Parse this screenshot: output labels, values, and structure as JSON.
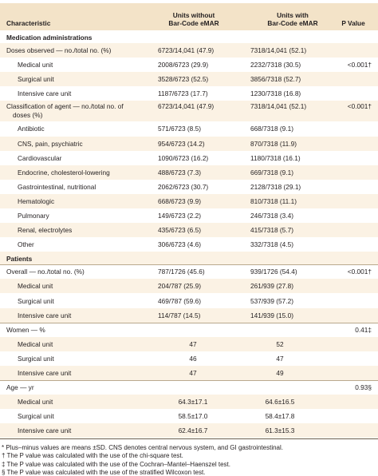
{
  "header": {
    "characteristic": "Characteristic",
    "without_line1": "Units without",
    "without_line2": "Bar-Code eMAR",
    "with_line1": "Units with",
    "with_line2": "Bar-Code eMAR",
    "p_value": "P Value"
  },
  "rows": [
    {
      "label": "Medication administrations",
      "without": "",
      "with": "",
      "p": "",
      "kind": "section"
    },
    {
      "label": "Doses observed — no./total no. (%)",
      "without": "6723/14,041 (47.9)",
      "with": "7318/14,041 (52.1)",
      "p": "",
      "kind": "group"
    },
    {
      "label": "Medical unit",
      "without": "2008/6723 (29.9)",
      "with": "2232/7318 (30.5)",
      "p": "<0.001†",
      "kind": "sub"
    },
    {
      "label": "Surgical unit",
      "without": "3528/6723 (52.5)",
      "with": "3856/7318 (52.7)",
      "p": "",
      "kind": "sub"
    },
    {
      "label": "Intensive care unit",
      "without": "1187/6723 (17.7)",
      "with": "1230/7318 (16.8)",
      "p": "",
      "kind": "sub"
    },
    {
      "label": "Classification of agent — no./total no. of",
      "label2": "doses (%)",
      "without": "6723/14,041 (47.9)",
      "with": "7318/14,041 (52.1)",
      "p": "<0.001†",
      "kind": "group2"
    },
    {
      "label": "Antibiotic",
      "without": "571/6723 (8.5)",
      "with": "668/7318 (9.1)",
      "p": "",
      "kind": "sub"
    },
    {
      "label": "CNS, pain, psychiatric",
      "without": "954/6723 (14.2)",
      "with": "870/7318 (11.9)",
      "p": "",
      "kind": "sub"
    },
    {
      "label": "Cardiovascular",
      "without": "1090/6723 (16.2)",
      "with": "1180/7318 (16.1)",
      "p": "",
      "kind": "sub"
    },
    {
      "label": "Endocrine, cholesterol-lowering",
      "without": "488/6723 (7.3)",
      "with": "669/7318 (9.1)",
      "p": "",
      "kind": "sub"
    },
    {
      "label": "Gastrointestinal, nutritional",
      "without": "2062/6723 (30.7)",
      "with": "2128/7318 (29.1)",
      "p": "",
      "kind": "sub"
    },
    {
      "label": "Hematologic",
      "without": "668/6723 (9.9)",
      "with": "810/7318 (11.1)",
      "p": "",
      "kind": "sub"
    },
    {
      "label": "Pulmonary",
      "without": "149/6723 (2.2)",
      "with": "246/7318 (3.4)",
      "p": "",
      "kind": "sub"
    },
    {
      "label": "Renal, electrolytes",
      "without": "435/6723 (6.5)",
      "with": "415/7318 (5.7)",
      "p": "",
      "kind": "sub"
    },
    {
      "label": "Other",
      "without": "306/6723 (4.6)",
      "with": "332/7318 (4.5)",
      "p": "",
      "kind": "sub"
    },
    {
      "label": "Patients",
      "without": "",
      "with": "",
      "p": "",
      "kind": "section"
    },
    {
      "label": "Overall — no./total no. (%)",
      "without": "787/1726 (45.6)",
      "with": "939/1726 (54.4)",
      "p": "<0.001†",
      "kind": "group"
    },
    {
      "label": "Medical unit",
      "without": "204/787 (25.9)",
      "with": "261/939 (27.8)",
      "p": "",
      "kind": "sub"
    },
    {
      "label": "Surgical unit",
      "without": "469/787 (59.6)",
      "with": "537/939 (57.2)",
      "p": "",
      "kind": "sub"
    },
    {
      "label": "Intensive care unit",
      "without": "114/787 (14.5)",
      "with": "141/939 (15.0)",
      "p": "",
      "kind": "sub"
    },
    {
      "label": "Women — %",
      "without": "",
      "with": "",
      "p": "0.41‡",
      "kind": "group"
    },
    {
      "label": "Medical unit",
      "without": "47",
      "with": "52",
      "p": "",
      "kind": "sub",
      "center": true
    },
    {
      "label": "Surgical unit",
      "without": "46",
      "with": "47",
      "p": "",
      "kind": "sub",
      "center": true
    },
    {
      "label": "Intensive care unit",
      "without": "47",
      "with": "49",
      "p": "",
      "kind": "sub",
      "center": true
    },
    {
      "label": "Age — yr",
      "without": "",
      "with": "",
      "p": "0.93§",
      "kind": "group"
    },
    {
      "label": "Medical unit",
      "without": "64.3±17.1",
      "with": "64.6±16.5",
      "p": "",
      "kind": "sub",
      "center": true
    },
    {
      "label": "Surgical unit",
      "without": "58.5±17.0",
      "with": "58.4±17.8",
      "p": "",
      "kind": "sub",
      "center": true
    },
    {
      "label": "Intensive care unit",
      "without": "62.4±16.7",
      "with": "61.3±15.3",
      "p": "",
      "kind": "sub",
      "center": true
    }
  ],
  "footnotes": [
    "* Plus–minus values are means ±SD. CNS denotes central nervous system, and GI gastrointestinal.",
    "† The P value was calculated with the use of the chi-square test.",
    "‡ The P value was calculated with the use of the Cochran–Mantel–Haenszel test.",
    "§ The P value was calculated with the use of the stratified Wilcoxon test."
  ]
}
